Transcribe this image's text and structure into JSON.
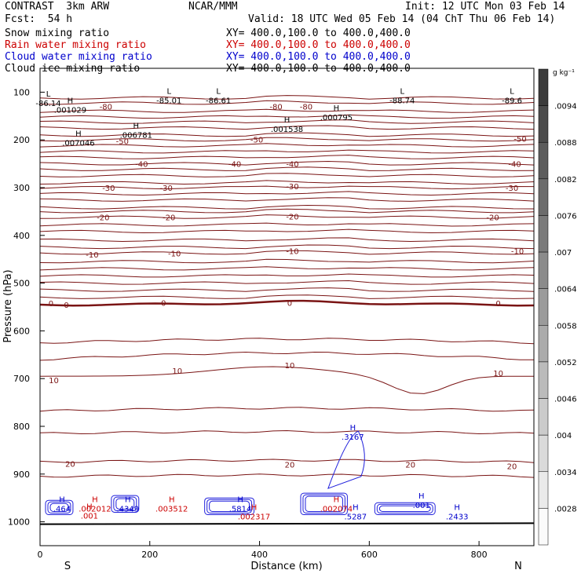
{
  "header": {
    "model": "CONTRAST  3km ARW",
    "center": "NCAR/MMM",
    "init": "Init: 12 UTC Mon 03 Feb 14",
    "fcst": "Fcst:  54 h",
    "valid": "Valid: 18 UTC Wed 05 Feb 14 (04 ChT Thu 06 Feb 14)"
  },
  "fields": [
    {
      "name": "Snow mixing ratio",
      "xy": "XY= 400.0,100.0 to 400.0,400.0",
      "color": "#000000"
    },
    {
      "name": "Rain water mixing ratio",
      "xy": "XY= 400.0,100.0 to 400.0,400.0",
      "color": "#cc0000"
    },
    {
      "name": "Cloud water mixing ratio",
      "xy": "XY= 400.0,100.0 to 400.0,400.0",
      "color": "#0000cc"
    },
    {
      "name": "Cloud ice mixing ratio",
      "xy": "XY= 400.0,100.0 to 400.0,400.0",
      "color": "#000000"
    }
  ],
  "colors": {
    "temperature": "#7a1414",
    "zero_line": "#7a1414",
    "cloud_water": "#1e1edc",
    "rain": "#cc0000"
  },
  "chart_data": {
    "type": "contour",
    "xlabel": "Distance (km)",
    "ylabel": "Pressure (hPa)",
    "xlim": [
      0,
      900
    ],
    "ylim": [
      1050,
      50
    ],
    "xticks": [
      "0",
      "200",
      "400",
      "600",
      "800"
    ],
    "yticks": [
      "100",
      "200",
      "300",
      "400",
      "500",
      "600",
      "700",
      "800",
      "900",
      "1000"
    ],
    "x_ends": {
      "left": "S",
      "right": "N"
    },
    "colorbar": {
      "unit": "g kg⁻¹",
      "ticks": [
        ".0094",
        ".0088",
        ".0082",
        ".0076",
        ".007",
        ".0064",
        ".0058",
        ".0052",
        ".0046",
        ".004",
        ".0034",
        ".0028"
      ]
    },
    "temperature_labels": [
      {
        "text": "-80",
        "x": 120,
        "p": 130
      },
      {
        "text": "-80",
        "x": 430,
        "p": 130
      },
      {
        "text": "-80",
        "x": 485,
        "p": 130
      },
      {
        "text": "-50",
        "x": 150,
        "p": 202
      },
      {
        "text": "-50",
        "x": 395,
        "p": 199
      },
      {
        "text": "-50",
        "x": 875,
        "p": 197
      },
      {
        "text": "-40",
        "x": 185,
        "p": 250
      },
      {
        "text": "-40",
        "x": 355,
        "p": 250
      },
      {
        "text": "-40",
        "x": 460,
        "p": 250
      },
      {
        "text": "-40",
        "x": 865,
        "p": 250
      },
      {
        "text": "-30",
        "x": 125,
        "p": 300
      },
      {
        "text": "-30",
        "x": 230,
        "p": 300
      },
      {
        "text": "-30",
        "x": 460,
        "p": 297
      },
      {
        "text": "-30",
        "x": 860,
        "p": 300
      },
      {
        "text": "-20",
        "x": 115,
        "p": 362
      },
      {
        "text": "-20",
        "x": 235,
        "p": 362
      },
      {
        "text": "-20",
        "x": 460,
        "p": 360
      },
      {
        "text": "-20",
        "x": 825,
        "p": 362
      },
      {
        "text": "-10",
        "x": 95,
        "p": 440
      },
      {
        "text": "-10",
        "x": 245,
        "p": 437
      },
      {
        "text": "-10",
        "x": 460,
        "p": 432
      },
      {
        "text": "-10",
        "x": 870,
        "p": 432
      },
      {
        "text": "0",
        "x": 20,
        "p": 542
      },
      {
        "text": "0",
        "x": 48,
        "p": 545
      },
      {
        "text": "0",
        "x": 225,
        "p": 541
      },
      {
        "text": "0",
        "x": 455,
        "p": 541
      },
      {
        "text": "0",
        "x": 835,
        "p": 542
      },
      {
        "text": "10",
        "x": 250,
        "p": 683
      },
      {
        "text": "10",
        "x": 455,
        "p": 672
      },
      {
        "text": "10",
        "x": 835,
        "p": 688
      },
      {
        "text": "10",
        "x": 25,
        "p": 703
      },
      {
        "text": "20",
        "x": 55,
        "p": 878
      },
      {
        "text": "20",
        "x": 455,
        "p": 880
      },
      {
        "text": "20",
        "x": 675,
        "p": 880
      },
      {
        "text": "20",
        "x": 860,
        "p": 883
      }
    ],
    "extrema": [
      {
        "kind": "L",
        "value": "-86.14",
        "x": 15,
        "p": 116,
        "color": "#000000"
      },
      {
        "kind": "L",
        "value": "-85.01",
        "x": 235,
        "p": 110,
        "color": "#000000"
      },
      {
        "kind": "L",
        "value": "-86.61",
        "x": 325,
        "p": 110,
        "color": "#000000"
      },
      {
        "kind": "L",
        "value": "-88.74",
        "x": 660,
        "p": 110,
        "color": "#000000"
      },
      {
        "kind": "L",
        "value": "-89.6",
        "x": 860,
        "p": 110,
        "color": "#000000"
      },
      {
        "kind": "H",
        "value": ".001029",
        "x": 55,
        "p": 130,
        "color": "#000000"
      },
      {
        "kind": "H",
        "value": ".001538",
        "x": 450,
        "p": 170,
        "color": "#000000"
      },
      {
        "kind": "H",
        "value": ".000795",
        "x": 540,
        "p": 145,
        "color": "#000000"
      },
      {
        "kind": "H",
        "value": ".007046",
        "x": 70,
        "p": 199,
        "color": "#000000"
      },
      {
        "kind": "H",
        "value": ".006781",
        "x": 175,
        "p": 182,
        "color": "#000000"
      },
      {
        "kind": "H",
        "value": ".3167",
        "x": 570,
        "p": 815,
        "color": "#0000cc"
      },
      {
        "kind": "H",
        "value": ".464",
        "x": 40,
        "p": 965,
        "color": "#0000cc"
      },
      {
        "kind": "H",
        "value": ".4349",
        "x": 160,
        "p": 965,
        "color": "#0000cc"
      },
      {
        "kind": "H",
        "value": ".5814",
        "x": 365,
        "p": 965,
        "color": "#0000cc"
      },
      {
        "kind": "H",
        "value": ".5287",
        "x": 575,
        "p": 982,
        "color": "#0000cc"
      },
      {
        "kind": "H",
        "value": ".2433",
        "x": 760,
        "p": 982,
        "color": "#0000cc"
      },
      {
        "kind": "H",
        "value": ".001",
        "x": 695,
        "p": 958,
        "color": "#0000cc"
      },
      {
        "kind": "H",
        "value": ".002012",
        "x": 100,
        "p": 965,
        "color": "#cc0000"
      },
      {
        "kind": "H",
        "value": ".001",
        "x": 90,
        "p": 980,
        "color": "#cc0000"
      },
      {
        "kind": "H",
        "value": ".003512",
        "x": 240,
        "p": 965,
        "color": "#cc0000"
      },
      {
        "kind": "H",
        "value": ".002317",
        "x": 390,
        "p": 982,
        "color": "#cc0000"
      },
      {
        "kind": "H",
        "value": ".002074",
        "x": 540,
        "p": 965,
        "color": "#cc0000"
      }
    ]
  }
}
